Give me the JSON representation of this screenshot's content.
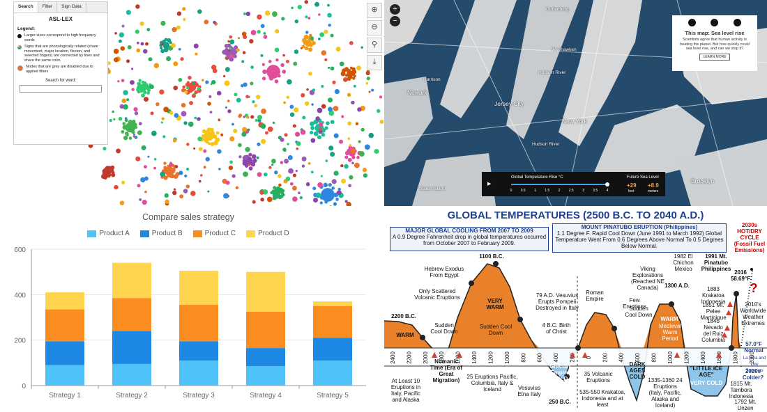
{
  "network_panel": {
    "tabs": [
      "Search",
      "Filter",
      "Sign Data"
    ],
    "title": "ASL-LEX",
    "legend_heading": "Legend:",
    "legend_items": [
      {
        "text": "Larger sizes correspond to high frequency words",
        "color": "#111111"
      },
      {
        "text": "Signs that are phonologically related (share movement, major location, flexion, and selected fingers) are connected by lines and share the same color.",
        "color": "#e04e9b"
      },
      {
        "text": "Nodes that are grey are disabled due to applied filters",
        "color": "#e8732a"
      }
    ],
    "search_label": "Search for word:",
    "tool_icons": [
      "zoom-in-icon",
      "zoom-out-icon",
      "search-icon",
      "download-icon"
    ]
  },
  "map_panel": {
    "zoom_in": "+",
    "zoom_out": "−",
    "labels": [
      "Guttenberg",
      "Weehawken",
      "Hudson River",
      "Newark",
      "Harrison",
      "Jersey City",
      "New York",
      "Hudson River",
      "Staten Island",
      "Brooklyn"
    ],
    "info_title": "This map: Sea level rise",
    "info_text": "Scientists agree that human activity is heating the planet. But how quickly could sea level rise, and can we stop it?",
    "info_button": "LEARN MORE",
    "bar_title": "Global Temperature Rise °C",
    "bar_ticks": [
      "0",
      "0.5",
      "1",
      "1.5",
      "2",
      "2.5",
      "3",
      "3.5",
      "4"
    ],
    "bar_value": 4,
    "future_label": "Future Sea Level",
    "future_c": "+29",
    "future_c_unit": "feet",
    "future_m": "+8.9",
    "future_m_unit": "meters"
  },
  "chart_data": [
    {
      "type": "bar",
      "stacked": true,
      "title": "Compare sales strategy",
      "categories": [
        "Strategy 1",
        "Strategy 2",
        "Strategy 3",
        "Strategy 4",
        "Strategy 5"
      ],
      "series": [
        {
          "name": "Product A",
          "color": "#4fc3f7",
          "values": [
            90,
            95,
            110,
            85,
            110
          ]
        },
        {
          "name": "Product B",
          "color": "#1e88e5",
          "values": [
            105,
            145,
            85,
            80,
            100
          ]
        },
        {
          "name": "Product C",
          "color": "#fb8c1f",
          "values": [
            140,
            145,
            160,
            160,
            140
          ]
        },
        {
          "name": "Product D",
          "color": "#ffd54f",
          "values": [
            75,
            155,
            150,
            175,
            20
          ]
        }
      ],
      "yticks": [
        0,
        200,
        400,
        600
      ],
      "ylim": [
        0,
        600
      ],
      "grid": true,
      "legend_position": "top"
    },
    {
      "type": "area",
      "title": "GLOBAL TEMPERATURES (2500 B.C. TO 2040 A.D.)",
      "x_ticks": [
        "2400",
        "2200",
        "2000",
        "1800",
        "1600",
        "1400",
        "1200",
        "1000",
        "800",
        "600",
        "400",
        "200",
        "0",
        "200",
        "400",
        "600",
        "800",
        "1000",
        "1200",
        "1400",
        "1600",
        "1800",
        "2000"
      ],
      "boxes": [
        {
          "head": "MAJOR GLOBAL COOLING FROM 2007 TO 2009",
          "text": "A 0.9 Degree Fahrenheit drop in global temperatures occurred from October 2007 to February 2009."
        },
        {
          "head": "MOUNT PINATUBO ERUPTION (Philippines)",
          "text": "1.1 Degree F. Rapid Cool Down (June 1991 to March 1992) Global Temperature Went From 0.6 Degrees Above Normal To 0.5 Degrees Below Normal."
        }
      ],
      "annotations": [
        "2200 B.C.",
        "WARM",
        "Sudden Cool Down",
        "Only Scattered Volcanic Eruptions",
        "Hebrew Exodus From Egypt",
        "1100 B.C.",
        "VERY WARM",
        "Sudden Cool Down",
        "79 A.D. Vesuvius Erupts Pompeii Destroyed in Italy",
        "Roman Empire",
        "4 B.C. Birth of Christ",
        "Viking Explorations (Reached NE Canada)",
        "Few Eruptions",
        "Sudden Cool Down",
        "1300 A.D.",
        "WARM",
        "Medieval Warm Period",
        "1982 El Chichon Mexico",
        "1991 Mt. Pinatubo Philippines",
        "1883 Krakatoa Indonesia",
        "1851 Mt. Pelee Martinique",
        "1845 Nevado del Ruiz Columbia",
        "2016 58.69°F",
        "2010's Worldwide Weather Extremes",
        "57.0°F Normal",
        "La Nina and Low Sunspots",
        "2020s Colder?",
        "2030s HOT/DRY CYCLE (Fossil Fuel Emissions)",
        "At Least 10 Eruptions in Italy, Pacific and Alaska",
        "Nomanic Time (Era of Great Migration)",
        "25 Eruptions Pacific, Columbia, Italy & Iceland",
        "Vesuvius Etna Italy",
        "Grecian Empire COLD",
        "250 B.C.",
        "35 Volcanic Eruptions",
        "535-550 Krakatoa, Indonesia and at least",
        "DARK AGES COLD",
        "1335-1360 24 Eruptions (Italy, Pacific, Alaska and Iceland)",
        "\"LITTLE ICE AGE\"",
        "VERY COLD",
        "1815 Mt. Tambora Indonesia",
        "1792 Mt. Unzen"
      ]
    }
  ]
}
